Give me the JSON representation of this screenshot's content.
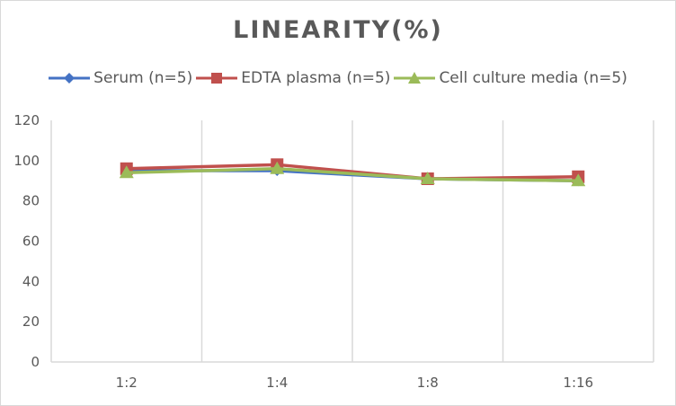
{
  "chart_data": {
    "type": "line",
    "title": "LINEARITY(%)",
    "xlabel": "",
    "ylabel": "",
    "categories": [
      "1:2",
      "1:4",
      "1:8",
      "1:16"
    ],
    "ylim": [
      0,
      120
    ],
    "yticks": [
      0,
      20,
      40,
      60,
      80,
      100,
      120
    ],
    "grid": {
      "vertical": true,
      "horizontal": false
    },
    "legend_position": "top",
    "series": [
      {
        "name": "Serum (n=5)",
        "color": "#4472c4",
        "marker": "diamond",
        "values": [
          95,
          95,
          91,
          90
        ]
      },
      {
        "name": "EDTA plasma (n=5)",
        "color": "#c0504d",
        "marker": "square",
        "values": [
          96,
          98,
          91,
          92
        ]
      },
      {
        "name": "Cell culture media (n=5)",
        "color": "#9bbb59",
        "marker": "triangle",
        "values": [
          94,
          96,
          91,
          90
        ]
      }
    ]
  },
  "legend": {
    "items": [
      {
        "label": "Serum (n=5)"
      },
      {
        "label": "EDTA plasma (n=5)"
      },
      {
        "label": "Cell culture media (n=5)"
      }
    ]
  }
}
